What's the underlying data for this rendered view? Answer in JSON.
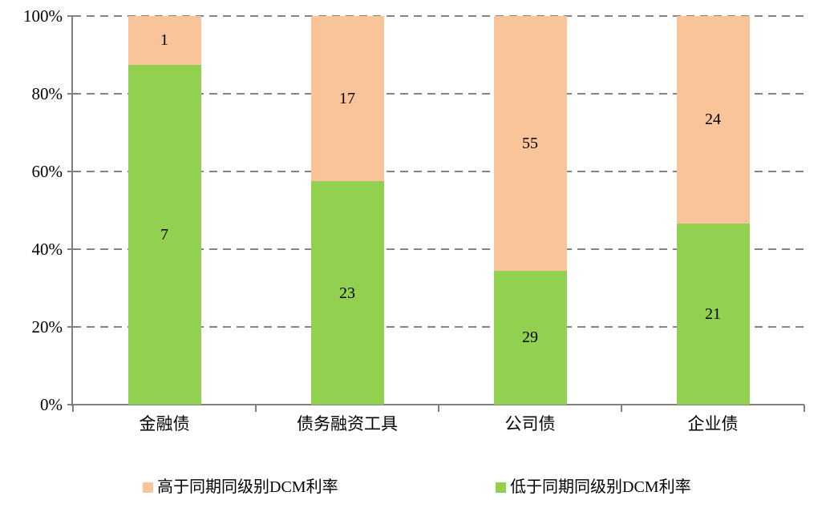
{
  "chart_data": {
    "type": "bar",
    "variant": "100-percent-stacked-column",
    "title": "",
    "categories": [
      "金融债",
      "债务融资工具",
      "公司债",
      "企业债"
    ],
    "series": [
      {
        "key": "lower-than-dcm-rate",
        "name": "低于同期同级别DCM利率",
        "color": "#92D050",
        "values": [
          7,
          23,
          29,
          21
        ]
      },
      {
        "key": "higher-than-dcm-rate",
        "name": "高于同期同级别DCM利率",
        "color": "#F9C499",
        "values": [
          1,
          17,
          55,
          24
        ]
      }
    ],
    "y_axis": {
      "tick_labels": [
        "0%",
        "20%",
        "40%",
        "60%",
        "80%",
        "100%"
      ],
      "min": "0%",
      "max": "100%"
    },
    "grid": {
      "horizontal": true,
      "style": "dashed",
      "color": "#848484"
    },
    "axis_color": "#808080",
    "legend": {
      "position": "bottom",
      "items": [
        {
          "label": "高于同期同级别DCM利率",
          "color": "#F9C499"
        },
        {
          "label": "低于同期同级别DCM利率",
          "color": "#92D050"
        }
      ]
    }
  }
}
